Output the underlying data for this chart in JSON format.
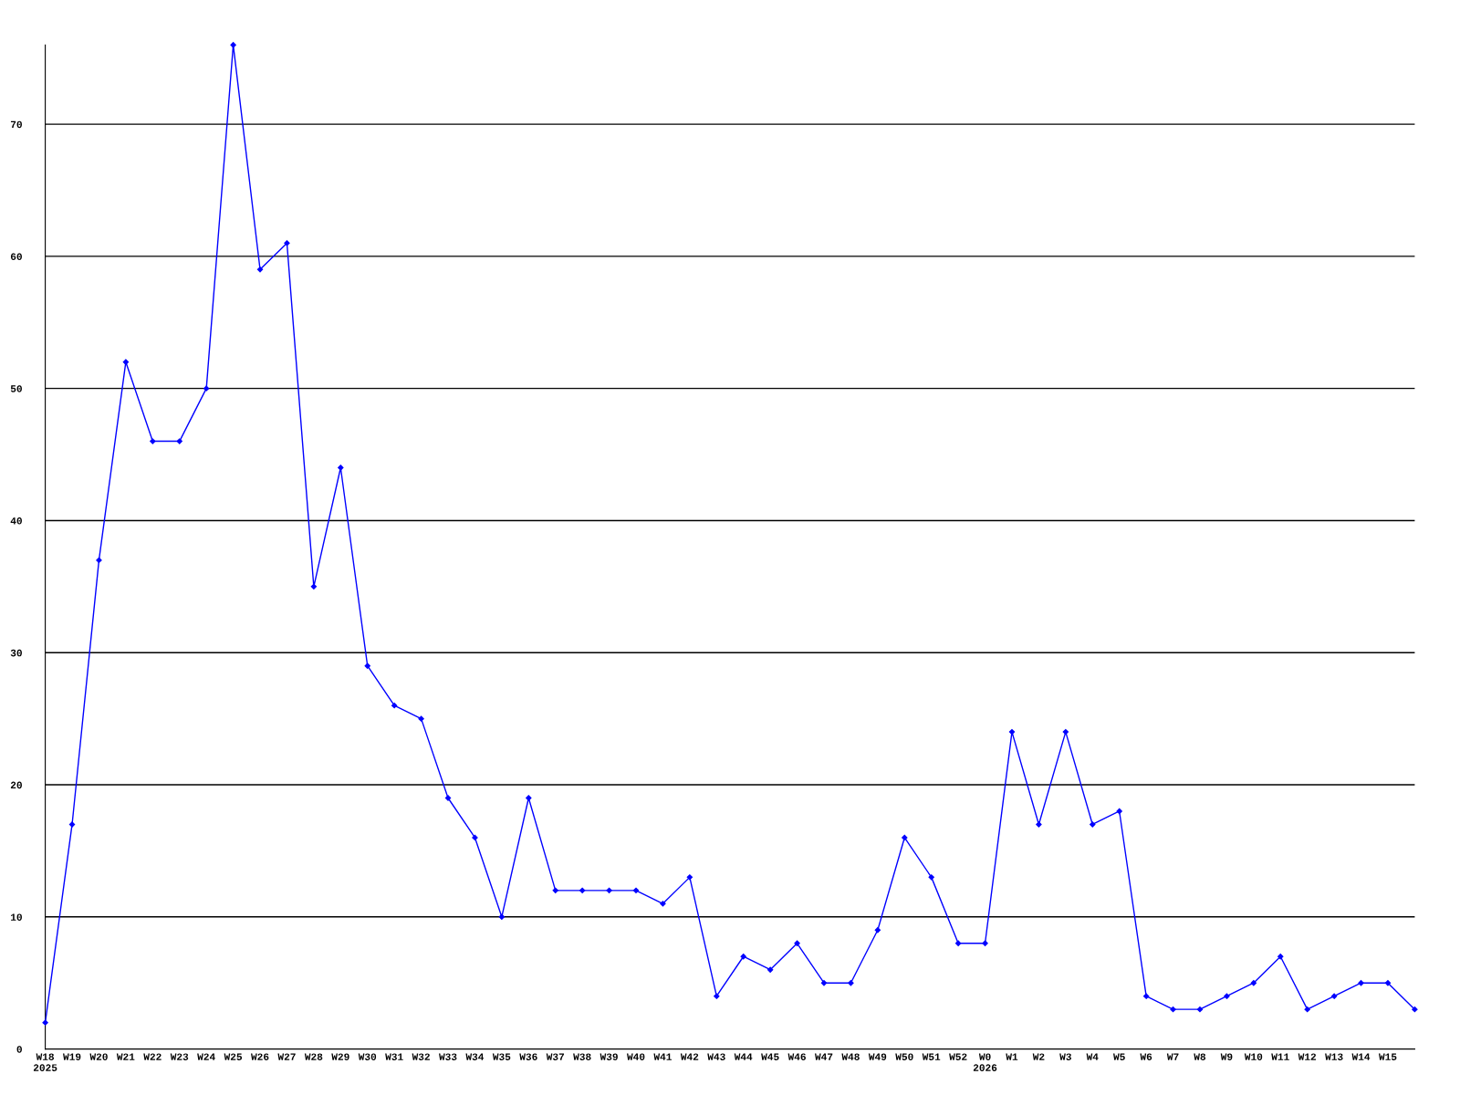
{
  "chart_data": {
    "type": "line",
    "categories": [
      "W18\n2025",
      "W19",
      "W20",
      "W21",
      "W22",
      "W23",
      "W24",
      "W25",
      "W26",
      "W27",
      "W28",
      "W29",
      "W30",
      "W31",
      "W32",
      "W33",
      "W34",
      "W35",
      "W36",
      "W37",
      "W38",
      "W39",
      "W40",
      "W41",
      "W42",
      "W43",
      "W44",
      "W45",
      "W46",
      "W47",
      "W48",
      "W49",
      "W50",
      "W51",
      "W52",
      "W0\n2026",
      "W1",
      "W2",
      "W3",
      "W4",
      "W5",
      "W6",
      "W7",
      "W8",
      "W9",
      "W10",
      "W11",
      "W12",
      "W13",
      "W14",
      "W15",
      null
    ],
    "series": [
      {
        "color": "#0000ff",
        "values": [
          2,
          17,
          37,
          52,
          46,
          46,
          50,
          76,
          59,
          61,
          35,
          44,
          29,
          26,
          25,
          19,
          16,
          10,
          19,
          12,
          12,
          12,
          12,
          11,
          13,
          4,
          7,
          6,
          8,
          5,
          5,
          9,
          16,
          13,
          8,
          8,
          24,
          17,
          24,
          17,
          18,
          4,
          3,
          3,
          4,
          5,
          7,
          3,
          4,
          5,
          5,
          3
        ]
      }
    ],
    "ylim": [
      0,
      76
    ],
    "yticks": [
      0,
      10,
      20,
      30,
      40,
      50,
      60,
      70
    ],
    "grid": "y",
    "marker": "diamond",
    "line_style": "solid"
  }
}
